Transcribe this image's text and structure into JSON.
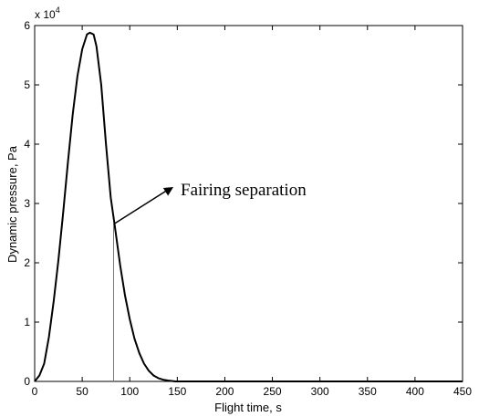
{
  "chart_data": {
    "type": "line",
    "title": "",
    "xlabel": "Flight time, s",
    "ylabel": "Dynamic pressure, Pa",
    "y_multiplier_label": "x 10",
    "y_multiplier_exponent": "4",
    "xlim": [
      0,
      450
    ],
    "ylim": [
      0,
      6
    ],
    "x_ticks": [
      "0",
      "50",
      "100",
      "150",
      "200",
      "250",
      "300",
      "350",
      "400",
      "450"
    ],
    "y_ticks": [
      "0",
      "1",
      "2",
      "3",
      "4",
      "5",
      "6"
    ],
    "grid": false,
    "series": [
      {
        "x": [
          0,
          5,
          10,
          15,
          20,
          25,
          30,
          35,
          40,
          45,
          50,
          55,
          58,
          62,
          65,
          70,
          75,
          80,
          84,
          90,
          95,
          100,
          105,
          110,
          115,
          120,
          125,
          130,
          135,
          140,
          145,
          148,
          155,
          200,
          250,
          300,
          350,
          400,
          450
        ],
        "y": [
          0,
          0.1,
          0.3,
          0.75,
          1.35,
          2.05,
          2.85,
          3.7,
          4.5,
          5.15,
          5.6,
          5.85,
          5.88,
          5.85,
          5.65,
          5.0,
          4.0,
          3.1,
          2.65,
          1.95,
          1.45,
          1.05,
          0.72,
          0.48,
          0.3,
          0.18,
          0.1,
          0.055,
          0.03,
          0.015,
          0.006,
          0.0,
          0.0,
          0.0,
          0.0,
          0.0,
          0.0,
          0.0,
          0.0
        ]
      }
    ],
    "annotations": [
      {
        "text": "Fairing separation",
        "marker_x": 83,
        "point": [
          83,
          2.65
        ]
      }
    ]
  }
}
